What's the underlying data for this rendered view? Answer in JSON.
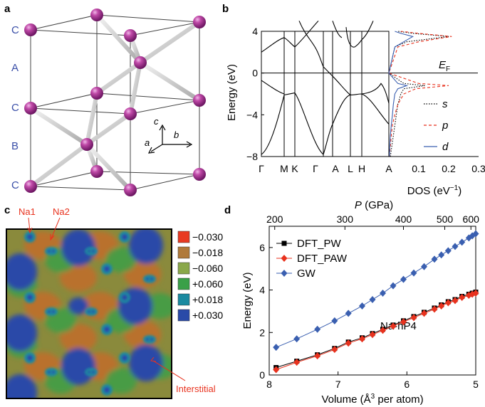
{
  "panel_a": {
    "letter": "a",
    "stacking": [
      "C",
      "A",
      "C",
      "B",
      "C"
    ],
    "axes": {
      "c": "c",
      "a": "a",
      "b": "b"
    },
    "colors": {
      "atom": "#a02a8c",
      "bond": "#c8c8c8"
    }
  },
  "panel_b": {
    "letter": "b",
    "ylabel": "Energy (eV)",
    "fermi_label": "E",
    "fermi_sub": "F",
    "dos_xlabel": "DOS (eV",
    "dos_xlabel_sup": "−1",
    "dos_xlabel_end": ")",
    "legend": [
      "s",
      "p",
      "d"
    ],
    "colors": {
      "s": "#000000",
      "p": "#e8321e",
      "d": "#3a5fb0"
    }
  },
  "panel_c": {
    "letter": "c",
    "labels": {
      "na1": "Na1",
      "na2": "Na2",
      "interstitial": "Interstitial"
    },
    "colorbar": [
      {
        "label": "−0.030",
        "color": "#e83a22"
      },
      {
        "label": "−0.018",
        "color": "#b07a3a"
      },
      {
        "label": "−0.060",
        "color": "#8aa84a"
      },
      {
        "label": "+0.060",
        "color": "#3aa048"
      },
      {
        "label": "+0.018",
        "color": "#1a8aa0"
      },
      {
        "label": "+0.030",
        "color": "#2a4aa8"
      }
    ]
  },
  "panel_d": {
    "letter": "d"
  },
  "chart_data": [
    {
      "type": "line",
      "panel": "b",
      "subtype": "band structure + density of states",
      "xlabel": "",
      "ylabel": "Energy (eV)",
      "ylim": [
        -8,
        4
      ],
      "yticks": [
        "4",
        "0",
        "−4",
        "−8"
      ],
      "kpoints": [
        "Γ",
        "M",
        "K",
        "Γ",
        "A",
        "L",
        "H",
        "A"
      ],
      "dos_xlabel": "DOS (eV−1)",
      "dos_xlim": [
        0,
        0.3
      ],
      "dos_xticks": [
        "0.1",
        "0.2",
        "0.3"
      ],
      "fermi_level": 0,
      "series": [
        {
          "name": "s",
          "style": "dotted"
        },
        {
          "name": "p",
          "style": "dashed"
        },
        {
          "name": "d",
          "style": "solid"
        }
      ],
      "dos": {
        "energies": [
          -8,
          -7,
          -6,
          -5,
          -4,
          -3,
          -2,
          -1.5,
          -1.2,
          -1,
          0,
          2.5,
          3,
          3.5,
          3.8,
          4
        ],
        "s": [
          0.005,
          0.01,
          0.015,
          0.02,
          0.025,
          0.03,
          0.04,
          0.05,
          0.12,
          0.05,
          0,
          0.02,
          0.06,
          0.2,
          0.08,
          0.03
        ],
        "p": [
          0.002,
          0.005,
          0.008,
          0.012,
          0.02,
          0.03,
          0.05,
          0.09,
          0.2,
          0.1,
          0,
          0.03,
          0.1,
          0.21,
          0.1,
          0.04
        ],
        "d": [
          0.002,
          0.003,
          0.005,
          0.008,
          0.012,
          0.015,
          0.02,
          0.03,
          0.06,
          0.03,
          0,
          0.02,
          0.05,
          0.08,
          0.04,
          0.02
        ]
      }
    },
    {
      "type": "line",
      "panel": "d",
      "xlabel": "Volume (Å",
      "xlabel_sup": "3",
      "xlabel_end": " per atom)",
      "ylabel": "Energy (eV)",
      "top_xlabel": "P",
      "top_xlabel_end": " (GPa)",
      "annotation": "Na-hP4",
      "xlim": [
        8,
        5
      ],
      "ylim": [
        0,
        7
      ],
      "xticks": [
        "8",
        "7",
        "6",
        "5"
      ],
      "yticks": [
        "0",
        "2",
        "4",
        "6"
      ],
      "top_ticks": [
        "200",
        "300",
        "400",
        "500",
        "600"
      ],
      "top_tick_volumes": [
        7.92,
        6.9,
        6.05,
        5.45,
        5.07
      ],
      "x": [
        7.9,
        7.6,
        7.3,
        7.05,
        6.85,
        6.65,
        6.5,
        6.35,
        6.2,
        6.05,
        5.9,
        5.75,
        5.6,
        5.5,
        5.4,
        5.3,
        5.2,
        5.1,
        5.05,
        5.0
      ],
      "series": [
        {
          "name": "DFT_PW",
          "color": "#000000",
          "marker": "square",
          "values": [
            0.35,
            0.65,
            0.95,
            1.25,
            1.55,
            1.75,
            1.95,
            2.15,
            2.35,
            2.55,
            2.75,
            2.95,
            3.15,
            3.3,
            3.45,
            3.55,
            3.7,
            3.8,
            3.85,
            3.9
          ]
        },
        {
          "name": "DFT_PAW",
          "color": "#e8321e",
          "marker": "diamond",
          "values": [
            0.25,
            0.6,
            0.9,
            1.2,
            1.5,
            1.7,
            1.9,
            2.1,
            2.3,
            2.5,
            2.7,
            2.9,
            3.1,
            3.25,
            3.4,
            3.5,
            3.65,
            3.75,
            3.8,
            3.85
          ]
        },
        {
          "name": "GW",
          "color": "#3a5fb0",
          "marker": "diamond",
          "values": [
            1.3,
            1.7,
            2.15,
            2.55,
            2.9,
            3.25,
            3.55,
            3.85,
            4.2,
            4.5,
            4.8,
            5.1,
            5.45,
            5.65,
            5.85,
            6.05,
            6.25,
            6.45,
            6.55,
            6.65
          ]
        }
      ]
    }
  ]
}
